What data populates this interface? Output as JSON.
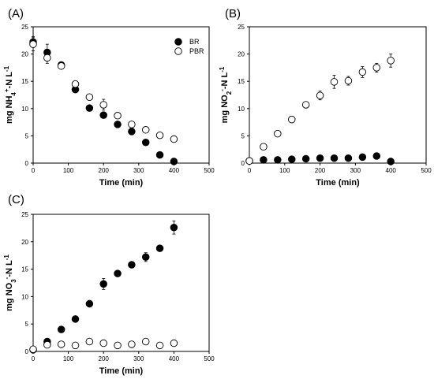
{
  "chart_data": [
    {
      "type": "scatter",
      "panel_label": "(A)",
      "xlabel": "Time (min)",
      "ylabel_parts": [
        {
          "t": "mg NH",
          "s": "n"
        },
        {
          "t": "4",
          "s": "sub"
        },
        {
          "t": "+",
          "s": "sup"
        },
        {
          "t": "-N L",
          "s": "n"
        },
        {
          "t": "-1",
          "s": "sup"
        }
      ],
      "xlim": [
        0,
        500
      ],
      "ylim": [
        0,
        25
      ],
      "xticks": [
        0,
        100,
        200,
        300,
        400,
        500
      ],
      "yticks": [
        0,
        5,
        10,
        15,
        20,
        25
      ],
      "legend": true,
      "legend_position": "top-right",
      "series": [
        {
          "name": "BR",
          "marker": "filled",
          "x": [
            0,
            40,
            80,
            120,
            160,
            200,
            240,
            280,
            320,
            360,
            400
          ],
          "y": [
            22.2,
            20.3,
            18.0,
            13.5,
            10.1,
            8.8,
            7.1,
            5.8,
            3.8,
            1.5,
            0.3
          ],
          "err": [
            1.0,
            1.5,
            0.5,
            0.6,
            0.4,
            0.4,
            0.3,
            0.3,
            0.3,
            0.2,
            0.1
          ]
        },
        {
          "name": "PBR",
          "marker": "open",
          "x": [
            0,
            40,
            80,
            120,
            160,
            200,
            240,
            280,
            320,
            360,
            400
          ],
          "y": [
            21.8,
            19.3,
            17.8,
            14.5,
            12.1,
            10.7,
            8.7,
            7.1,
            6.1,
            5.1,
            4.4
          ],
          "err": [
            1.2,
            1.0,
            0.5,
            0.5,
            0.5,
            1.0,
            0.5,
            0.3,
            0.3,
            0.3,
            0.3
          ]
        }
      ]
    },
    {
      "type": "scatter",
      "panel_label": "(B)",
      "xlabel": "Time (min)",
      "ylabel_parts": [
        {
          "t": "mg NO",
          "s": "n"
        },
        {
          "t": "2",
          "s": "sub"
        },
        {
          "t": "-",
          "s": "sup"
        },
        {
          "t": "-N L",
          "s": "n"
        },
        {
          "t": "-1",
          "s": "sup"
        }
      ],
      "xlim": [
        0,
        500
      ],
      "ylim": [
        0,
        25
      ],
      "xticks": [
        0,
        100,
        200,
        300,
        400,
        500
      ],
      "yticks": [
        0,
        5,
        10,
        15,
        20,
        25
      ],
      "legend": false,
      "series": [
        {
          "name": "BR",
          "marker": "filled",
          "x": [
            0,
            40,
            80,
            120,
            160,
            200,
            240,
            280,
            320,
            360,
            400
          ],
          "y": [
            0.4,
            0.6,
            0.6,
            0.7,
            0.8,
            0.9,
            0.9,
            0.9,
            1.1,
            1.3,
            0.3
          ],
          "err": [
            0.1,
            0.1,
            0.1,
            0.1,
            0.1,
            0.1,
            0.1,
            0.1,
            0.2,
            0.2,
            0.1
          ]
        },
        {
          "name": "PBR",
          "marker": "open",
          "x": [
            0,
            40,
            80,
            120,
            160,
            200,
            240,
            280,
            320,
            360,
            400
          ],
          "y": [
            0.4,
            3.0,
            5.4,
            8.0,
            10.7,
            12.4,
            14.9,
            15.1,
            16.7,
            17.5,
            18.8
          ],
          "err": [
            0.1,
            0.3,
            0.3,
            0.6,
            0.4,
            0.8,
            1.2,
            0.8,
            1.0,
            0.8,
            1.2
          ]
        }
      ]
    },
    {
      "type": "scatter",
      "panel_label": "(C)",
      "xlabel": "Time (min)",
      "ylabel_parts": [
        {
          "t": "mg NO",
          "s": "n"
        },
        {
          "t": "3",
          "s": "sub"
        },
        {
          "t": "-",
          "s": "sup"
        },
        {
          "t": "-N L",
          "s": "n"
        },
        {
          "t": "-1",
          "s": "sup"
        }
      ],
      "xlim": [
        0,
        500
      ],
      "ylim": [
        0,
        25
      ],
      "xticks": [
        0,
        100,
        200,
        300,
        400,
        500
      ],
      "yticks": [
        0,
        5,
        10,
        15,
        20,
        25
      ],
      "legend": false,
      "series": [
        {
          "name": "BR",
          "marker": "filled",
          "x": [
            0,
            40,
            80,
            120,
            160,
            200,
            240,
            280,
            320,
            360,
            400
          ],
          "y": [
            0.3,
            1.8,
            4.0,
            5.9,
            8.7,
            12.3,
            14.2,
            15.8,
            17.2,
            18.8,
            22.6
          ],
          "err": [
            0.1,
            0.2,
            0.3,
            0.3,
            0.6,
            1.0,
            0.4,
            0.5,
            0.8,
            0.4,
            1.2
          ]
        },
        {
          "name": "PBR",
          "marker": "open",
          "x": [
            0,
            40,
            80,
            120,
            160,
            200,
            240,
            280,
            320,
            360,
            400
          ],
          "y": [
            0.4,
            1.2,
            1.3,
            1.1,
            1.8,
            1.5,
            1.1,
            1.3,
            1.8,
            1.1,
            1.5
          ],
          "err": [
            0.1,
            0.2,
            0.2,
            0.2,
            0.2,
            0.2,
            0.2,
            0.2,
            0.2,
            0.2,
            0.2
          ]
        }
      ]
    }
  ]
}
